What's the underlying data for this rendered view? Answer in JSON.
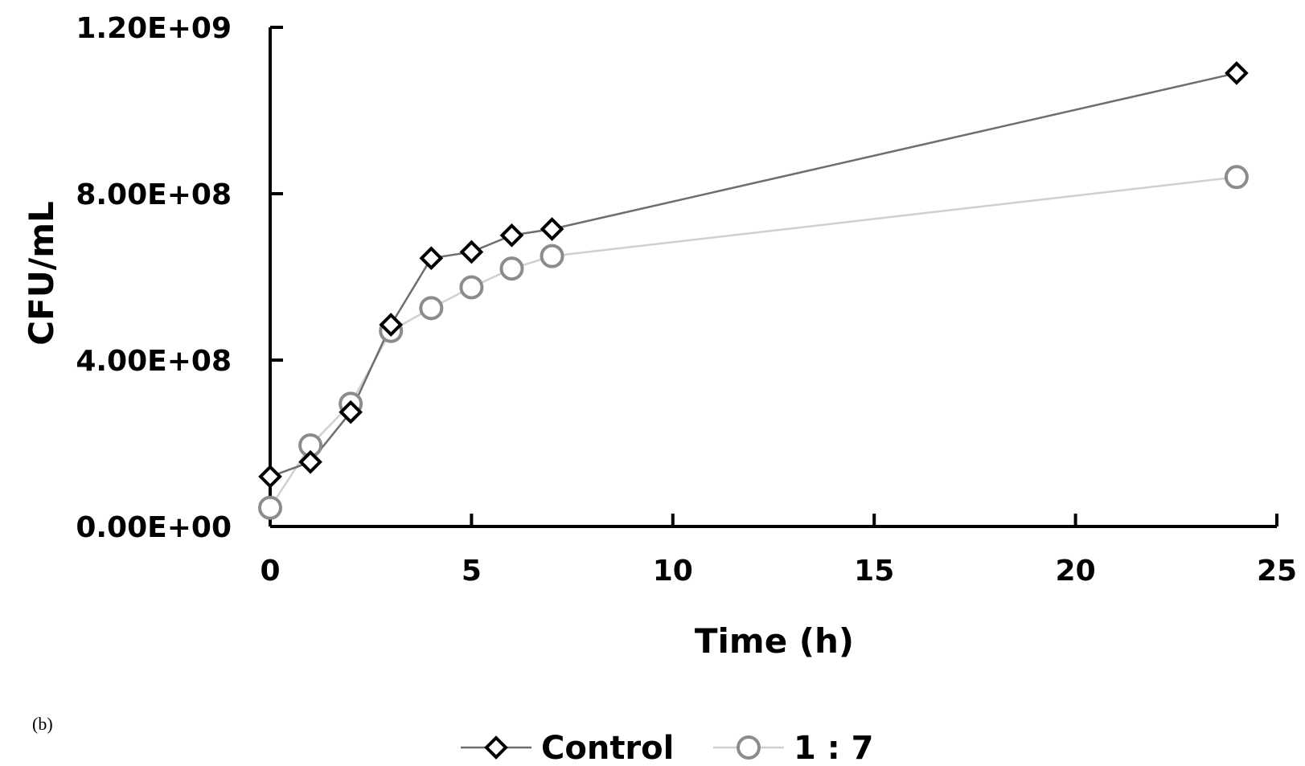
{
  "panel_label": "(b)",
  "chart_data": {
    "type": "line",
    "xlabel": "Time (h)",
    "ylabel": "CFU/mL",
    "xlim": [
      0,
      25
    ],
    "ylim": [
      0,
      1200000000
    ],
    "x_ticks": [
      0,
      5,
      10,
      15,
      20,
      25
    ],
    "x_tick_labels": [
      "0",
      "5",
      "10",
      "15",
      "20",
      "25"
    ],
    "y_ticks": [
      0,
      400000000,
      800000000,
      1200000000
    ],
    "y_tick_labels": [
      "0.00E+00",
      "4.00E+08",
      "8.00E+08",
      "1.20E+09"
    ],
    "grid": false,
    "legend_position": "bottom",
    "series": [
      {
        "name": "Control",
        "marker": "diamond",
        "color": "#000000",
        "line_color": "#6e6e6e",
        "x": [
          0,
          1,
          2,
          3,
          4,
          5,
          6,
          7,
          24
        ],
        "y": [
          120000000,
          155000000,
          275000000,
          485000000,
          645000000,
          660000000,
          700000000,
          715000000,
          1090000000
        ]
      },
      {
        "name": "1 : 7",
        "marker": "circle",
        "color": "#8c8c8c",
        "line_color": "#d0d0d0",
        "x": [
          0,
          1,
          2,
          3,
          4,
          5,
          6,
          7,
          24
        ],
        "y": [
          45000000,
          195000000,
          295000000,
          470000000,
          525000000,
          575000000,
          620000000,
          650000000,
          840000000
        ]
      }
    ]
  }
}
